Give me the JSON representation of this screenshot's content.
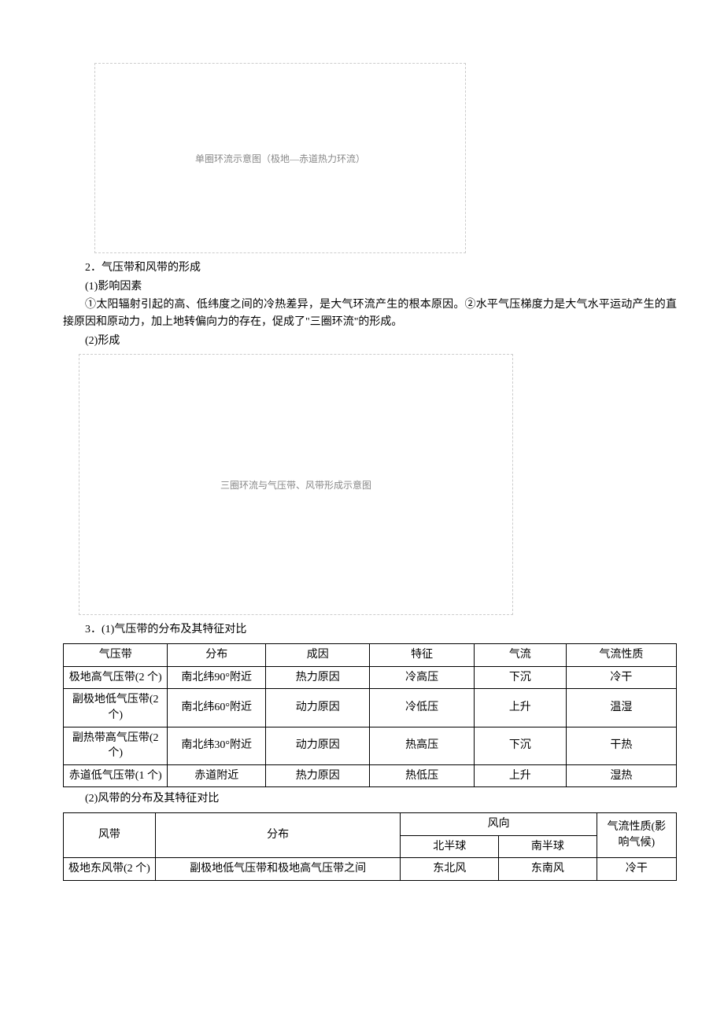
{
  "figures": {
    "fig1_caption": "单圈环流示意图（极地—赤道热力环流）",
    "fig2_caption": "三圈环流与气压带、风带形成示意图"
  },
  "headings": {
    "h2": "2．气压带和风带的形成",
    "h2_1": "(1)影响因素",
    "h2_1_body": "①太阳辐射引起的高、低纬度之间的冷热差异，是大气环流产生的根本原因。②水平气压梯度力是大气水平运动产生的直接原因和原动力，加上地转偏向力的存在，促成了\"三圈环流\"的形成。",
    "h2_2": "(2)形成",
    "h3": "3．(1)气压带的分布及其特征对比",
    "h3_2": "(2)风带的分布及其特征对比"
  },
  "table1": {
    "headers": [
      "气压带",
      "分布",
      "成因",
      "特征",
      "气流",
      "气流性质"
    ],
    "rows": [
      [
        "极地高气压带(2 个)",
        "南北纬90°附近",
        "热力原因",
        "冷高压",
        "下沉",
        "冷干"
      ],
      [
        "副极地低气压带(2 个)",
        "南北纬60°附近",
        "动力原因",
        "冷低压",
        "上升",
        "温湿"
      ],
      [
        "副热带高气压带(2 个)",
        "南北纬30°附近",
        "动力原因",
        "热高压",
        "下沉",
        "干热"
      ],
      [
        "赤道低气压带(1 个)",
        "赤道附近",
        "热力原因",
        "热低压",
        "上升",
        "湿热"
      ]
    ]
  },
  "table2": {
    "header_belt": "风带",
    "header_dist": "分布",
    "header_dir": "风向",
    "header_nh": "北半球",
    "header_sh": "南半球",
    "header_prop": "气流性质(影响气候)",
    "rows": [
      [
        "极地东风带(2 个)",
        "副极地低气压带和极地高气压带之间",
        "东北风",
        "东南风",
        "冷干"
      ]
    ]
  }
}
